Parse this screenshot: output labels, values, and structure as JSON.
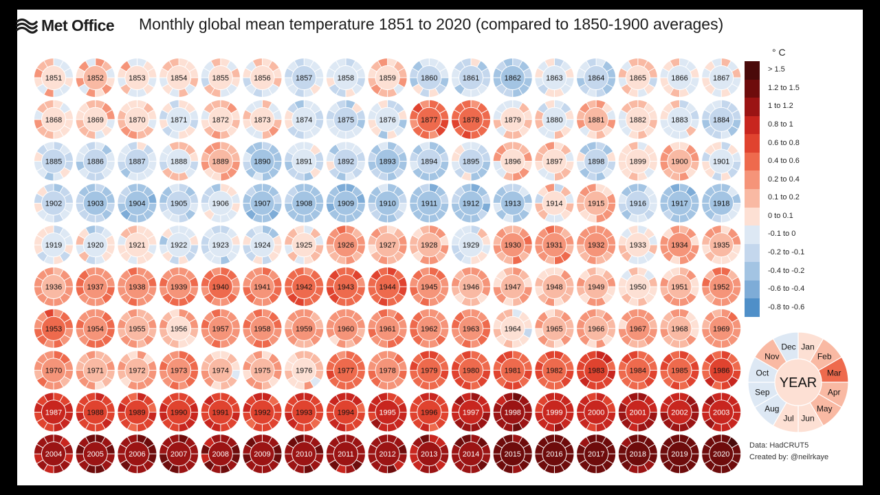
{
  "header": {
    "brand": "Met Office",
    "title": "Monthly global mean temperature 1851 to 2020 (compared to 1850-1900 averages)"
  },
  "legend": {
    "unit": "° C",
    "items": [
      {
        "label": "> 1.5",
        "color": "#4a0a0a"
      },
      {
        "label": "1.2 to 1.5",
        "color": "#6e0c0c"
      },
      {
        "label": "1 to 1.2",
        "color": "#9b1414"
      },
      {
        "label": "0.8 to 1",
        "color": "#c8261f"
      },
      {
        "label": "0.6 to 0.8",
        "color": "#e0432f"
      },
      {
        "label": "0.4 to 0.6",
        "color": "#ee6a4d"
      },
      {
        "label": "0.2 to 0.4",
        "color": "#f59479"
      },
      {
        "label": "0.1 to 0.2",
        "color": "#f9b9a3"
      },
      {
        "label": "0 to 0.1",
        "color": "#fde0d4"
      },
      {
        "label": "-0.1 to 0",
        "color": "#dde8f4"
      },
      {
        "label": "-0.2 to -0.1",
        "color": "#c4d7ed"
      },
      {
        "label": "-0.4 to -0.2",
        "color": "#a3c4e3"
      },
      {
        "label": "-0.6 to -0.4",
        "color": "#7eacd7"
      },
      {
        "label": "-0.8 to -0.6",
        "color": "#4f8fc8"
      }
    ]
  },
  "key": {
    "center": "YEAR",
    "months": [
      "Jan",
      "Feb",
      "Mar",
      "Apr",
      "May",
      "Jun",
      "Jul",
      "Aug",
      "Sep",
      "Oct",
      "Nov",
      "Dec"
    ],
    "month_values": [
      0.05,
      0.15,
      0.5,
      0.15,
      0.15,
      0.05,
      0.05,
      -0.05,
      -0.05,
      -0.05,
      0.15,
      -0.05
    ],
    "year_value": 0.05
  },
  "credit": {
    "data": "Data: HadCRUT5",
    "created": "Created by: @neilrkaye"
  },
  "chart_data": {
    "type": "heatmap",
    "title": "Monthly global mean temperature 1851 to 2020 (compared to 1850-1900 averages)",
    "unit": "° C",
    "start_year": 1851,
    "columns": 17,
    "years": [
      1851,
      1852,
      1853,
      1854,
      1855,
      1856,
      1857,
      1858,
      1859,
      1860,
      1861,
      1862,
      1863,
      1864,
      1865,
      1866,
      1867,
      1868,
      1869,
      1870,
      1871,
      1872,
      1873,
      1874,
      1875,
      1876,
      1877,
      1878,
      1879,
      1880,
      1881,
      1882,
      1883,
      1884,
      1885,
      1886,
      1887,
      1888,
      1889,
      1890,
      1891,
      1892,
      1893,
      1894,
      1895,
      1896,
      1897,
      1898,
      1899,
      1900,
      1901,
      1902,
      1903,
      1904,
      1905,
      1906,
      1907,
      1908,
      1909,
      1910,
      1911,
      1912,
      1913,
      1914,
      1915,
      1916,
      1917,
      1918,
      1919,
      1920,
      1921,
      1922,
      1923,
      1924,
      1925,
      1926,
      1927,
      1928,
      1929,
      1930,
      1931,
      1932,
      1933,
      1934,
      1935,
      1936,
      1937,
      1938,
      1939,
      1940,
      1941,
      1942,
      1943,
      1944,
      1945,
      1946,
      1947,
      1948,
      1949,
      1950,
      1951,
      1952,
      1953,
      1954,
      1955,
      1956,
      1957,
      1958,
      1959,
      1960,
      1961,
      1962,
      1963,
      1964,
      1965,
      1966,
      1967,
      1968,
      1969,
      1970,
      1971,
      1972,
      1973,
      1974,
      1975,
      1976,
      1977,
      1978,
      1979,
      1980,
      1981,
      1982,
      1983,
      1984,
      1985,
      1986,
      1987,
      1988,
      1989,
      1990,
      1991,
      1992,
      1993,
      1994,
      1995,
      1996,
      1997,
      1998,
      1999,
      2000,
      2001,
      2002,
      2003,
      2004,
      2005,
      2006,
      2007,
      2008,
      2009,
      2010,
      2011,
      2012,
      2013,
      2014,
      2015,
      2016,
      2017,
      2018,
      2019,
      2020
    ],
    "annual_anomaly": [
      0.08,
      0.12,
      0.05,
      0.07,
      0.05,
      0.03,
      -0.12,
      -0.05,
      0.1,
      -0.1,
      -0.12,
      -0.3,
      -0.06,
      -0.18,
      0.03,
      0.0,
      0.0,
      0.06,
      0.1,
      0.06,
      -0.06,
      0.1,
      0.06,
      -0.06,
      -0.1,
      -0.08,
      0.45,
      0.55,
      0.05,
      0.0,
      0.15,
      0.04,
      -0.04,
      -0.15,
      -0.1,
      -0.1,
      -0.15,
      0.0,
      0.2,
      -0.2,
      -0.08,
      -0.15,
      -0.2,
      -0.18,
      -0.12,
      0.08,
      0.08,
      -0.12,
      0.05,
      0.15,
      -0.05,
      -0.1,
      -0.22,
      -0.3,
      -0.15,
      -0.05,
      -0.25,
      -0.3,
      -0.35,
      -0.25,
      -0.3,
      -0.3,
      -0.2,
      0.05,
      0.15,
      -0.15,
      -0.3,
      -0.2,
      -0.08,
      -0.05,
      0.05,
      -0.05,
      -0.05,
      -0.05,
      0.05,
      0.25,
      0.2,
      0.2,
      0.0,
      0.3,
      0.3,
      0.28,
      0.06,
      0.22,
      0.15,
      0.2,
      0.35,
      0.38,
      0.4,
      0.45,
      0.4,
      0.48,
      0.5,
      0.55,
      0.4,
      0.2,
      0.2,
      0.15,
      0.15,
      0.05,
      0.2,
      0.3,
      0.5,
      0.35,
      0.2,
      0.1,
      0.35,
      0.35,
      0.25,
      0.25,
      0.35,
      0.35,
      0.35,
      0.05,
      0.18,
      0.18,
      0.25,
      0.2,
      0.3,
      0.3,
      0.18,
      0.2,
      0.4,
      0.15,
      0.2,
      0.1,
      0.5,
      0.4,
      0.55,
      0.6,
      0.6,
      0.6,
      0.72,
      0.6,
      0.6,
      0.68,
      0.82,
      0.75,
      0.7,
      0.8,
      0.78,
      0.72,
      0.74,
      0.72,
      0.88,
      0.75,
      0.95,
      1.1,
      0.9,
      0.88,
      0.98,
      1.0,
      0.98,
      1.05,
      1.2,
      1.15,
      1.15,
      1.15,
      1.15,
      1.2,
      1.05,
      1.1,
      1.1,
      1.15,
      1.3,
      1.35,
      1.3,
      1.22,
      1.35,
      1.38
    ]
  }
}
